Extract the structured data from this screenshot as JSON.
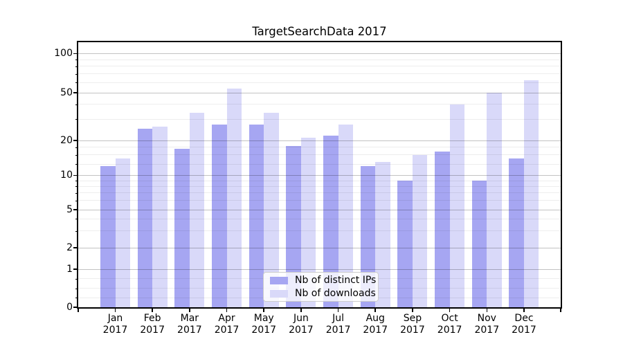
{
  "title": "TargetSearchData 2017",
  "chart_data": {
    "type": "bar",
    "title": "TargetSearchData 2017",
    "categories": [
      "Jan 2017",
      "Feb 2017",
      "Mar 2017",
      "Apr 2017",
      "May 2017",
      "Jun 2017",
      "Jul 2017",
      "Aug 2017",
      "Sep 2017",
      "Oct 2017",
      "Nov 2017",
      "Dec 2017"
    ],
    "series": [
      {
        "name": "Nb of distinct IPs",
        "color": "#a6a6f2",
        "values": [
          12,
          25,
          17,
          27,
          27,
          18,
          22,
          12,
          9,
          16,
          9,
          14
        ]
      },
      {
        "name": "Nb of downloads",
        "color": "#d9d9f9",
        "values": [
          14,
          26,
          34,
          54,
          34,
          21,
          27,
          13,
          15,
          40,
          50,
          62
        ]
      }
    ],
    "yscale": "symlog",
    "y_ticks": [
      0,
      1,
      2,
      5,
      10,
      20,
      50,
      100
    ],
    "y_tick_labels": [
      "0",
      "1",
      "2",
      "5",
      "10",
      "20",
      "50",
      "100"
    ],
    "y_minor_ticks": [
      0.25,
      0.5,
      0.75,
      3,
      4,
      6,
      7,
      8,
      9,
      12.5,
      15,
      17.5,
      30,
      40,
      60,
      70,
      80,
      90
    ],
    "ylim": [
      0,
      115
    ],
    "grid": true,
    "legend_position": "lower center",
    "colors": {
      "axis": "#000000",
      "grid_major": "#c2c2c2",
      "grid_minor": "#ededed",
      "background": "#ffffff"
    }
  }
}
